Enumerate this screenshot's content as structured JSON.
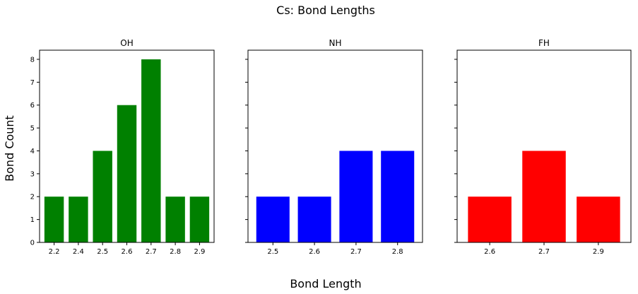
{
  "figure": {
    "title": "Cs: Bond Lengths",
    "xlabel": "Bond Length",
    "ylabel": "Bond Count"
  },
  "chart_data": [
    {
      "type": "bar",
      "title": "OH",
      "categories": [
        "2.2",
        "2.4",
        "2.5",
        "2.6",
        "2.7",
        "2.8",
        "2.9"
      ],
      "values": [
        2,
        2,
        4,
        6,
        8,
        2,
        2
      ],
      "color": "#008000",
      "ylim": [
        0,
        8.4
      ],
      "yticks": [
        0,
        1,
        2,
        3,
        4,
        5,
        6,
        7,
        8
      ],
      "show_ytick_labels": true
    },
    {
      "type": "bar",
      "title": "NH",
      "categories": [
        "2.5",
        "2.6",
        "2.7",
        "2.8"
      ],
      "values": [
        2,
        2,
        4,
        4
      ],
      "color": "#0000ff",
      "ylim": [
        0,
        8.4
      ],
      "yticks": [
        0,
        1,
        2,
        3,
        4,
        5,
        6,
        7,
        8
      ],
      "show_ytick_labels": false
    },
    {
      "type": "bar",
      "title": "FH",
      "categories": [
        "2.6",
        "2.7",
        "2.9"
      ],
      "values": [
        2,
        4,
        2
      ],
      "color": "#ff0000",
      "ylim": [
        0,
        8.4
      ],
      "yticks": [
        0,
        1,
        2,
        3,
        4,
        5,
        6,
        7,
        8
      ],
      "show_ytick_labels": false
    }
  ]
}
